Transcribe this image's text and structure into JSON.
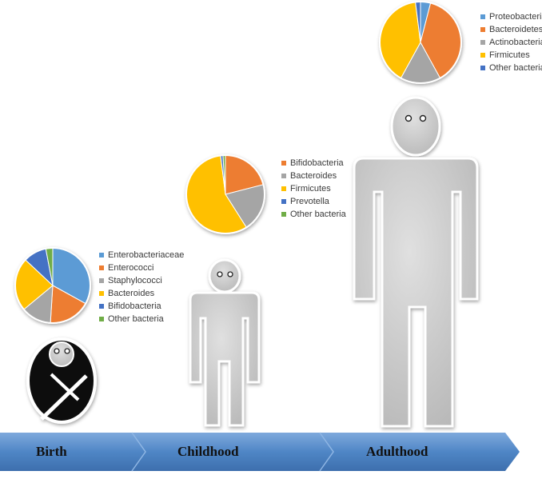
{
  "stages": [
    {
      "label": "Birth"
    },
    {
      "label": "Childhood"
    },
    {
      "label": "Adulthood"
    }
  ],
  "colors": {
    "blue_light": "#5b9bd5",
    "orange": "#ed7d31",
    "gray": "#a5a5a5",
    "yellow": "#ffc000",
    "blue_dark": "#4472c4",
    "green": "#70ad47",
    "arrow": "#4f86c6",
    "figure": "#c8c8c8"
  },
  "chart_data": [
    {
      "type": "pie",
      "stage": "Birth",
      "series": [
        {
          "name": "Enterobacteriaceae",
          "value": 33,
          "color": "#5b9bd5"
        },
        {
          "name": "Enterococci",
          "value": 18,
          "color": "#ed7d31"
        },
        {
          "name": "Staphylococci",
          "value": 13,
          "color": "#a5a5a5"
        },
        {
          "name": "Bacteroides",
          "value": 23,
          "color": "#ffc000"
        },
        {
          "name": "Bifidobacteria",
          "value": 10,
          "color": "#4472c4"
        },
        {
          "name": "Other bacteria",
          "value": 3,
          "color": "#70ad47"
        }
      ]
    },
    {
      "type": "pie",
      "stage": "Childhood",
      "series": [
        {
          "name": "Bifidobacteria",
          "value": 21,
          "color": "#ed7d31"
        },
        {
          "name": "Bacteroides",
          "value": 20,
          "color": "#a5a5a5"
        },
        {
          "name": "Firmicutes",
          "value": 57,
          "color": "#ffc000"
        },
        {
          "name": "Prevotella",
          "value": 1,
          "color": "#4472c4"
        },
        {
          "name": "Other bacteria",
          "value": 1,
          "color": "#70ad47"
        }
      ]
    },
    {
      "type": "pie",
      "stage": "Adulthood",
      "series": [
        {
          "name": "Proteobacteria",
          "value": 4,
          "color": "#5b9bd5"
        },
        {
          "name": "Bacteroidetes",
          "value": 38,
          "color": "#ed7d31"
        },
        {
          "name": "Actinobacteria",
          "value": 16,
          "color": "#a5a5a5"
        },
        {
          "name": "Firmicutes",
          "value": 40,
          "color": "#ffc000"
        },
        {
          "name": "Other bacteria",
          "value": 2,
          "color": "#4472c4"
        }
      ]
    }
  ]
}
